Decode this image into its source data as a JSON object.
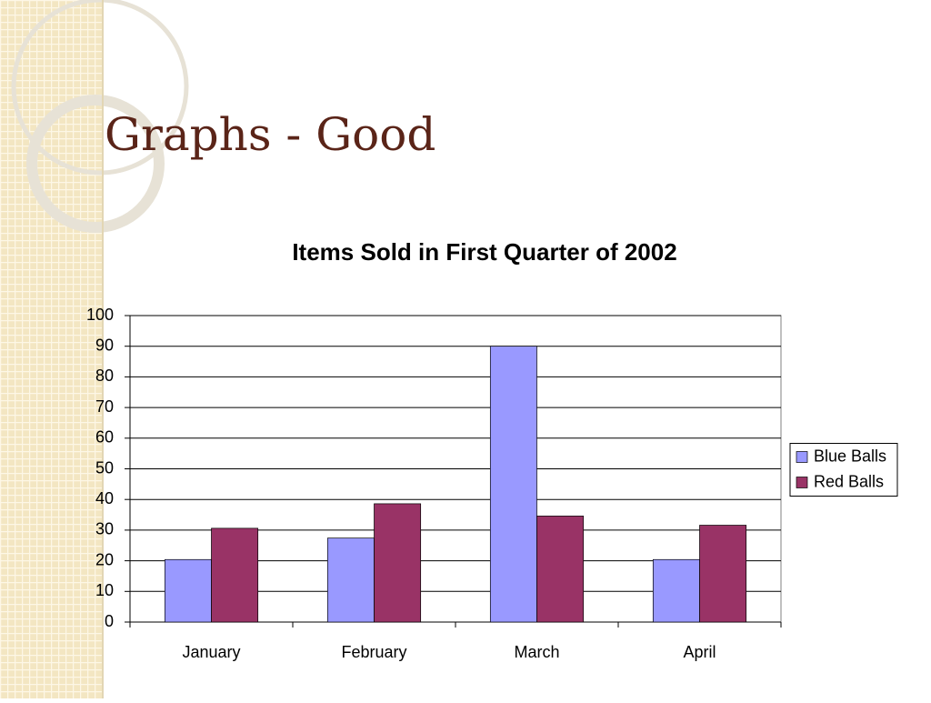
{
  "slide_title": "Graphs - Good",
  "chart_data": {
    "type": "bar",
    "title": "Items Sold in First Quarter of 2002",
    "categories": [
      "January",
      "February",
      "March",
      "April"
    ],
    "series": [
      {
        "name": "Blue Balls",
        "color": "#9999ff",
        "values": [
          20.4,
          27.4,
          90,
          20.4
        ]
      },
      {
        "name": "Red Balls",
        "color": "#993366",
        "values": [
          30.6,
          38.6,
          34.6,
          31.6
        ]
      }
    ],
    "ylim": [
      0,
      100
    ],
    "yticks": [
      0,
      10,
      20,
      30,
      40,
      50,
      60,
      70,
      80,
      90,
      100
    ],
    "grid": true,
    "legend": "right"
  }
}
